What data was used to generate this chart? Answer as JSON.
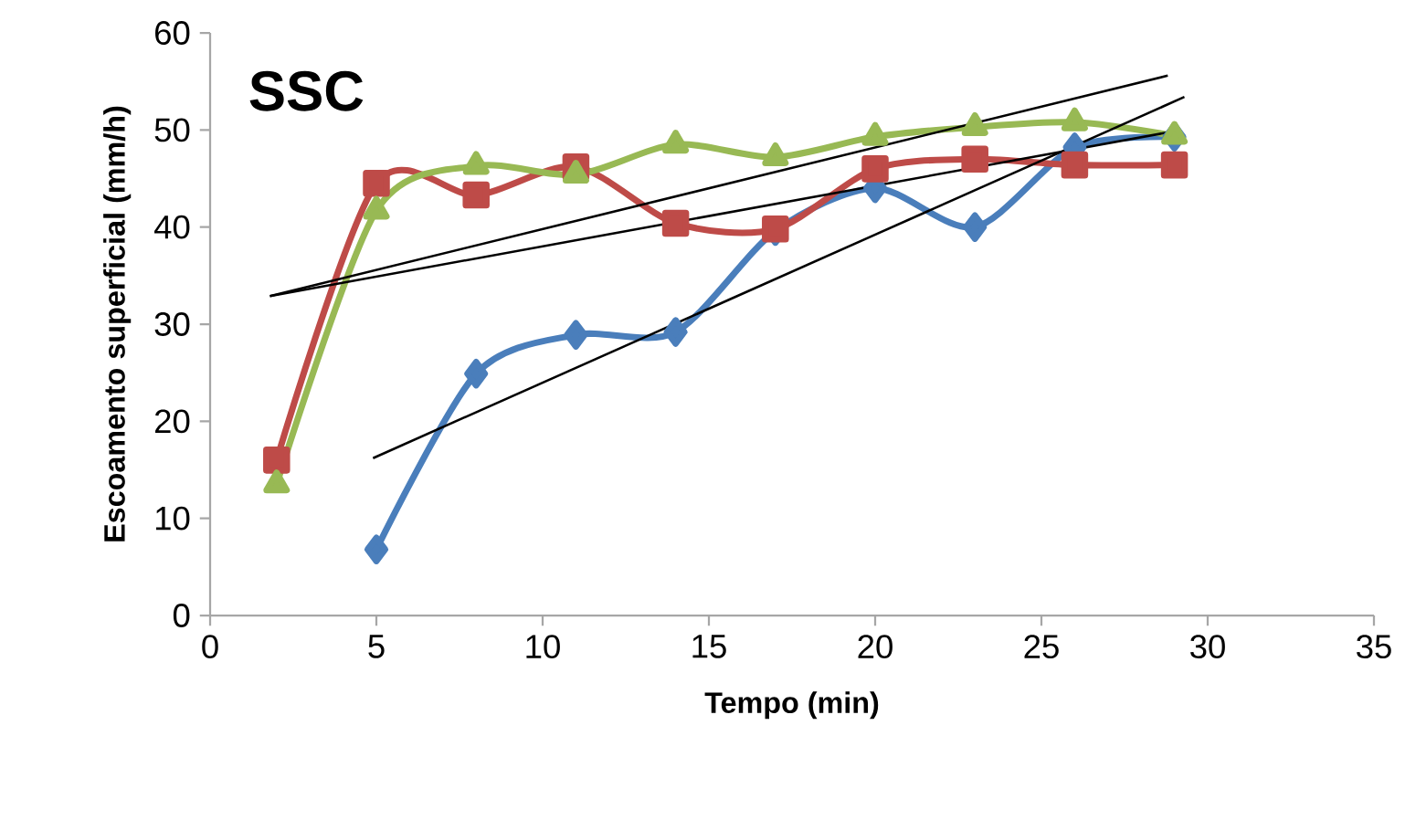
{
  "chart_data": {
    "type": "line",
    "title": "SSC",
    "xlabel": "Tempo (min)",
    "ylabel": "Escoamento superficial (mm/h)",
    "xlim": [
      0,
      35
    ],
    "xticks": [
      0,
      5,
      10,
      15,
      20,
      25,
      30,
      35
    ],
    "ylim": [
      0,
      60
    ],
    "yticks": [
      0,
      10,
      20,
      30,
      40,
      50,
      60
    ],
    "grid": false,
    "series": [
      {
        "color": "#4a7ebb",
        "marker": "diamond",
        "x": [
          5,
          8,
          11,
          14,
          17,
          20,
          23,
          26,
          29
        ],
        "values": [
          6.8,
          24.9,
          28.9,
          29.2,
          39.6,
          44,
          40,
          48.2,
          49.3
        ]
      },
      {
        "color": "#be4b48",
        "marker": "square",
        "x": [
          2,
          5,
          8,
          11,
          14,
          17,
          20,
          23,
          26,
          29
        ],
        "values": [
          16,
          44.5,
          43.3,
          46.2,
          40.4,
          39.8,
          46,
          47,
          46.4,
          46.4
        ]
      },
      {
        "color": "#98b954",
        "marker": "triangle",
        "x": [
          2,
          5,
          8,
          11,
          14,
          17,
          20,
          23,
          26,
          29
        ],
        "values": [
          13.5,
          41.7,
          46.3,
          45.4,
          48.5,
          47.2,
          49.3,
          50.3,
          50.8,
          49.4
        ]
      },
      {
        "color": "#000000",
        "marker": "none",
        "x": [
          1.8,
          28.8
        ],
        "values": [
          32.9,
          55.6
        ]
      },
      {
        "color": "#000000",
        "marker": "none",
        "x": [
          1.8,
          29.2
        ],
        "values": [
          32.9,
          50
        ]
      },
      {
        "color": "#000000",
        "marker": "none",
        "x": [
          4.9,
          29.3
        ],
        "values": [
          16.2,
          53.4
        ]
      }
    ]
  }
}
